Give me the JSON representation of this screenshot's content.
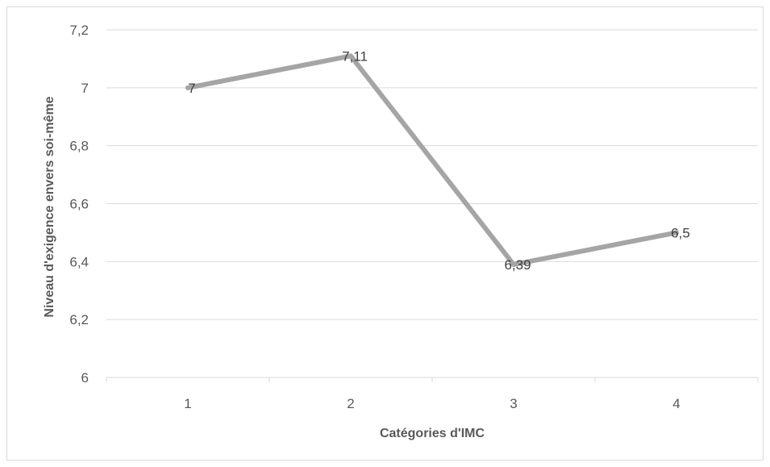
{
  "chart_data": {
    "type": "line",
    "title": "",
    "xlabel": "Catégories d'IMC",
    "ylabel": "Niveau d'exigence envers soi-même",
    "categories": [
      "1",
      "2",
      "3",
      "4"
    ],
    "ylim": [
      6,
      7.2
    ],
    "yticks": [
      6,
      6.2,
      6.4,
      6.6,
      6.8,
      7,
      7.2
    ],
    "ytick_labels": [
      "6",
      "6,2",
      "6,4",
      "6,6",
      "6,8",
      "7",
      "7,2"
    ],
    "series": [
      {
        "values": [
          7,
          7.11,
          6.39,
          6.5
        ],
        "data_labels": [
          "7",
          "7,11",
          "6,39",
          "6,5"
        ],
        "color": "#a5a5a5"
      }
    ],
    "grid": true,
    "legend": "none"
  }
}
